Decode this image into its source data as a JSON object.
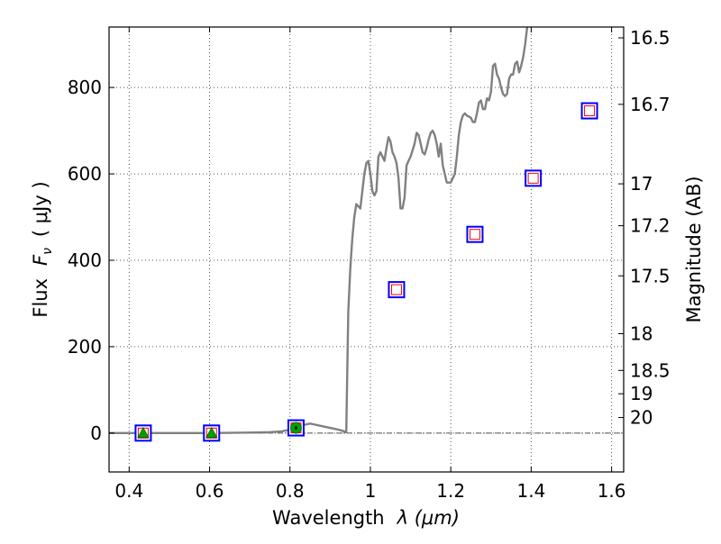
{
  "chart_data": {
    "type": "scatter",
    "xlabel_text": "Wavelength",
    "xlabel_math": "λ (μm)",
    "ylabel_text": "Flux",
    "ylabel_math": "F",
    "ylabel_math_sub": "ν",
    "ylabel_unit": "( μJy )",
    "y2label": "Magnitude (AB)",
    "xlim": [
      0.35,
      1.63
    ],
    "ylim": [
      -90,
      940
    ],
    "x_ticks": [
      0.4,
      0.6,
      0.8,
      1.0,
      1.2,
      1.4,
      1.6
    ],
    "x_tick_labels": [
      "0.4",
      "0.6",
      "0.8",
      "1",
      "1.2",
      "1.4",
      "1.6"
    ],
    "y_ticks": [
      0,
      200,
      400,
      600,
      800
    ],
    "y_tick_labels": [
      "0",
      "200",
      "400",
      "600",
      "800"
    ],
    "y2_ticks": [
      {
        "label": "16.5",
        "flux": 915
      },
      {
        "label": "16.7",
        "flux": 761
      },
      {
        "label": "17",
        "flux": 577
      },
      {
        "label": "17.2",
        "flux": 480
      },
      {
        "label": "17.5",
        "flux": 364
      },
      {
        "label": "18",
        "flux": 230
      },
      {
        "label": "18.5",
        "flux": 145
      },
      {
        "label": "19",
        "flux": 91
      },
      {
        "label": "20",
        "flux": 36
      }
    ],
    "grid": true,
    "zero_line": true,
    "colors": {
      "model_line": "#808080",
      "square_outer": "#0000ff",
      "square_inner": "#ff0000",
      "detection": "#00a000",
      "zero_line": "#555555",
      "grid": "#555555"
    },
    "series": [
      {
        "kind": "model_spectrum",
        "style": "line",
        "points": [
          [
            0.35,
            0
          ],
          [
            0.5,
            0
          ],
          [
            0.6,
            0
          ],
          [
            0.7,
            1
          ],
          [
            0.75,
            2
          ],
          [
            0.78,
            4
          ],
          [
            0.8,
            8
          ],
          [
            0.82,
            16
          ],
          [
            0.84,
            20
          ],
          [
            0.85,
            22
          ],
          [
            0.86,
            20
          ],
          [
            0.88,
            16
          ],
          [
            0.9,
            12
          ],
          [
            0.92,
            8
          ],
          [
            0.935,
            4
          ],
          [
            0.94,
            2
          ],
          [
            0.945,
            280
          ],
          [
            0.95,
            380
          ],
          [
            0.955,
            450
          ],
          [
            0.96,
            500
          ],
          [
            0.965,
            530
          ],
          [
            0.97,
            525
          ],
          [
            0.975,
            520
          ],
          [
            0.98,
            560
          ],
          [
            0.985,
            600
          ],
          [
            0.99,
            625
          ],
          [
            0.995,
            630
          ],
          [
            1.0,
            600
          ],
          [
            1.005,
            560
          ],
          [
            1.01,
            550
          ],
          [
            1.015,
            560
          ],
          [
            1.02,
            640
          ],
          [
            1.025,
            650
          ],
          [
            1.03,
            640
          ],
          [
            1.035,
            630
          ],
          [
            1.04,
            660
          ],
          [
            1.045,
            685
          ],
          [
            1.05,
            675
          ],
          [
            1.055,
            650
          ],
          [
            1.06,
            640
          ],
          [
            1.065,
            625
          ],
          [
            1.07,
            590
          ],
          [
            1.075,
            520
          ],
          [
            1.08,
            520
          ],
          [
            1.085,
            545
          ],
          [
            1.09,
            620
          ],
          [
            1.095,
            630
          ],
          [
            1.1,
            640
          ],
          [
            1.11,
            670
          ],
          [
            1.115,
            695
          ],
          [
            1.12,
            690
          ],
          [
            1.125,
            670
          ],
          [
            1.13,
            650
          ],
          [
            1.135,
            645
          ],
          [
            1.14,
            660
          ],
          [
            1.145,
            680
          ],
          [
            1.15,
            695
          ],
          [
            1.155,
            700
          ],
          [
            1.16,
            690
          ],
          [
            1.165,
            670
          ],
          [
            1.17,
            640
          ],
          [
            1.175,
            670
          ],
          [
            1.18,
            620
          ],
          [
            1.19,
            580
          ],
          [
            1.2,
            580
          ],
          [
            1.21,
            600
          ],
          [
            1.215,
            640
          ],
          [
            1.22,
            690
          ],
          [
            1.225,
            720
          ],
          [
            1.23,
            735
          ],
          [
            1.235,
            740
          ],
          [
            1.24,
            735
          ],
          [
            1.25,
            730
          ],
          [
            1.255,
            720
          ],
          [
            1.26,
            720
          ],
          [
            1.265,
            740
          ],
          [
            1.27,
            765
          ],
          [
            1.275,
            770
          ],
          [
            1.28,
            750
          ],
          [
            1.285,
            750
          ],
          [
            1.29,
            775
          ],
          [
            1.295,
            770
          ],
          [
            1.3,
            790
          ],
          [
            1.305,
            850
          ],
          [
            1.31,
            855
          ],
          [
            1.315,
            830
          ],
          [
            1.32,
            820
          ],
          [
            1.325,
            800
          ],
          [
            1.33,
            785
          ],
          [
            1.335,
            780
          ],
          [
            1.34,
            785
          ],
          [
            1.345,
            820
          ],
          [
            1.35,
            830
          ],
          [
            1.355,
            830
          ],
          [
            1.36,
            855
          ],
          [
            1.365,
            860
          ],
          [
            1.37,
            835
          ],
          [
            1.375,
            850
          ],
          [
            1.38,
            870
          ],
          [
            1.385,
            900
          ],
          [
            1.39,
            940
          ]
        ]
      },
      {
        "kind": "photometry_boxes",
        "style": "box",
        "points": [
          [
            0.435,
            0
          ],
          [
            0.605,
            0
          ],
          [
            0.815,
            12
          ],
          [
            1.065,
            332
          ],
          [
            1.26,
            460
          ],
          [
            1.405,
            590
          ],
          [
            1.545,
            746
          ]
        ]
      },
      {
        "kind": "upper_limit_triangles",
        "style": "triangle",
        "points": [
          [
            0.435,
            0
          ],
          [
            0.605,
            0
          ]
        ]
      },
      {
        "kind": "detection_point",
        "style": "circle",
        "points": [
          [
            0.815,
            12
          ]
        ],
        "errors": [
          4
        ]
      }
    ]
  }
}
